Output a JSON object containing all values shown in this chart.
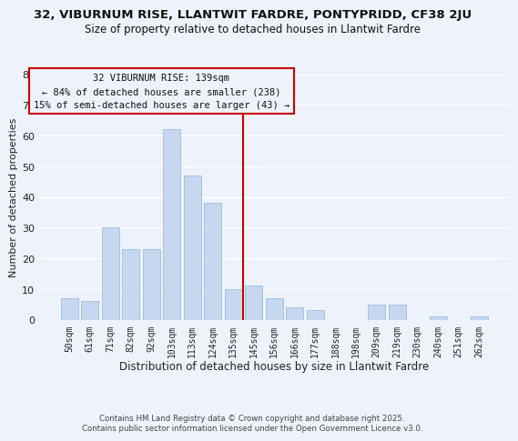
{
  "title": "32, VIBURNUM RISE, LLANTWIT FARDRE, PONTYPRIDD, CF38 2JU",
  "subtitle": "Size of property relative to detached houses in Llantwit Fardre",
  "xlabel": "Distribution of detached houses by size in Llantwit Fardre",
  "ylabel": "Number of detached properties",
  "bar_labels": [
    "50sqm",
    "61sqm",
    "71sqm",
    "82sqm",
    "92sqm",
    "103sqm",
    "113sqm",
    "124sqm",
    "135sqm",
    "145sqm",
    "156sqm",
    "166sqm",
    "177sqm",
    "188sqm",
    "198sqm",
    "209sqm",
    "219sqm",
    "230sqm",
    "240sqm",
    "251sqm",
    "262sqm"
  ],
  "bar_values": [
    7,
    6,
    30,
    23,
    23,
    62,
    47,
    38,
    10,
    11,
    7,
    4,
    3,
    0,
    0,
    5,
    5,
    0,
    1,
    0,
    1
  ],
  "bar_color": "#c5d8f0",
  "bar_edge_color": "#a0bcd8",
  "vline_x": 8.5,
  "vline_color": "#cc0000",
  "annotation_title": "32 VIBURNUM RISE: 139sqm",
  "annotation_line1": "← 84% of detached houses are smaller (238)",
  "annotation_line2": "15% of semi-detached houses are larger (43) →",
  "annotation_box_edge": "#cc0000",
  "ylim": [
    0,
    80
  ],
  "yticks": [
    0,
    10,
    20,
    30,
    40,
    50,
    60,
    70,
    80
  ],
  "footer1": "Contains HM Land Registry data © Crown copyright and database right 2025.",
  "footer2": "Contains public sector information licensed under the Open Government Licence v3.0.",
  "bg_color": "#eef2fb",
  "grid_color": "#ffffff"
}
